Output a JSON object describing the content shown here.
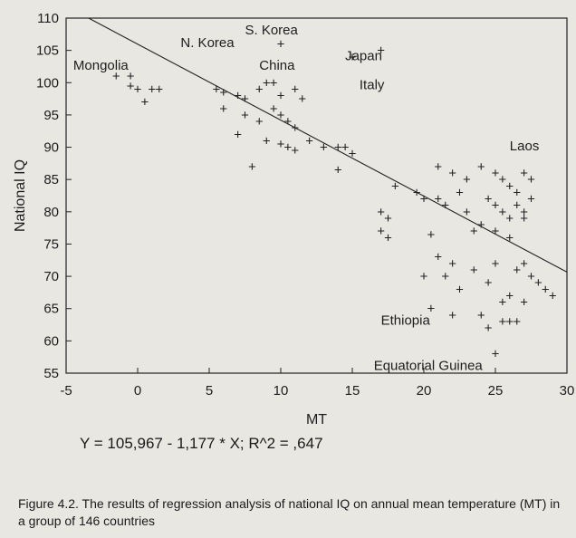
{
  "chart_data": {
    "type": "scatter",
    "xlabel": "MT",
    "ylabel": "National IQ",
    "xlim": [
      -5,
      30
    ],
    "ylim": [
      55,
      110
    ],
    "xticks": [
      -5,
      0,
      5,
      10,
      15,
      20,
      25,
      30
    ],
    "yticks": [
      55,
      60,
      65,
      70,
      75,
      80,
      85,
      90,
      95,
      100,
      105,
      110
    ],
    "grid": false,
    "point_marker": "+",
    "points": [
      [
        -1.5,
        101
      ],
      [
        10,
        106
      ],
      [
        17,
        105
      ],
      [
        15,
        104
      ],
      [
        -0.5,
        101
      ],
      [
        -0.5,
        99.5
      ],
      [
        0,
        99
      ],
      [
        1,
        99
      ],
      [
        1.5,
        99
      ],
      [
        0.5,
        97
      ],
      [
        5.5,
        99
      ],
      [
        6,
        98.5
      ],
      [
        7,
        98
      ],
      [
        7.5,
        97.5
      ],
      [
        8.5,
        99
      ],
      [
        9,
        100
      ],
      [
        9.5,
        100
      ],
      [
        10,
        98
      ],
      [
        11,
        99
      ],
      [
        11.5,
        97.5
      ],
      [
        9.5,
        96
      ],
      [
        10,
        95
      ],
      [
        6,
        96
      ],
      [
        7.5,
        95
      ],
      [
        8.5,
        94
      ],
      [
        10.5,
        94
      ],
      [
        11,
        93
      ],
      [
        7,
        92
      ],
      [
        9,
        91
      ],
      [
        10,
        90.5
      ],
      [
        10.5,
        90
      ],
      [
        11,
        89.5
      ],
      [
        12,
        91
      ],
      [
        13,
        90
      ],
      [
        14,
        90
      ],
      [
        14.5,
        90
      ],
      [
        15,
        89
      ],
      [
        8,
        87
      ],
      [
        14,
        86.5
      ],
      [
        18,
        84
      ],
      [
        19.5,
        83
      ],
      [
        20,
        82
      ],
      [
        21,
        82
      ],
      [
        21.5,
        81
      ],
      [
        17,
        80
      ],
      [
        17.5,
        79
      ],
      [
        21,
        87
      ],
      [
        22,
        86
      ],
      [
        23,
        85
      ],
      [
        22.5,
        83
      ],
      [
        24,
        87
      ],
      [
        25,
        86
      ],
      [
        25.5,
        85
      ],
      [
        26,
        84
      ],
      [
        26.5,
        83
      ],
      [
        27,
        86
      ],
      [
        27.5,
        85
      ],
      [
        24.5,
        82
      ],
      [
        25,
        81
      ],
      [
        25.5,
        80
      ],
      [
        26,
        79
      ],
      [
        26.5,
        81
      ],
      [
        27,
        80
      ],
      [
        27.5,
        82
      ],
      [
        24,
        78
      ],
      [
        25,
        77
      ],
      [
        26,
        76
      ],
      [
        27,
        79
      ],
      [
        23,
        80
      ],
      [
        23.5,
        77
      ],
      [
        17,
        77
      ],
      [
        17.5,
        76
      ],
      [
        20.5,
        76.5
      ],
      [
        21,
        73
      ],
      [
        22,
        72
      ],
      [
        21.5,
        70
      ],
      [
        20,
        70
      ],
      [
        22.5,
        68
      ],
      [
        23.5,
        71
      ],
      [
        24.5,
        69
      ],
      [
        25,
        72
      ],
      [
        26.5,
        71
      ],
      [
        27,
        72
      ],
      [
        27.5,
        70
      ],
      [
        28,
        69
      ],
      [
        28.5,
        68
      ],
      [
        29,
        67
      ],
      [
        26,
        67
      ],
      [
        27,
        66
      ],
      [
        25.5,
        66
      ],
      [
        24,
        64
      ],
      [
        24.5,
        62
      ],
      [
        25.5,
        63
      ],
      [
        26,
        63
      ],
      [
        26.5,
        63
      ],
      [
        22,
        64
      ],
      [
        20.5,
        65
      ],
      [
        25,
        58
      ]
    ],
    "regression": {
      "intercept": 105.967,
      "slope": -1.177
    },
    "annotations": [
      {
        "text": "Mongolia",
        "x": -4.5,
        "y": 102
      },
      {
        "text": "N. Korea",
        "x": 3,
        "y": 105.5
      },
      {
        "text": "S. Korea",
        "x": 7.5,
        "y": 107.5
      },
      {
        "text": "China",
        "x": 8.5,
        "y": 102
      },
      {
        "text": "Japan",
        "x": 14.5,
        "y": 103.5
      },
      {
        "text": "Italy",
        "x": 15.5,
        "y": 99
      },
      {
        "text": "Laos",
        "x": 26,
        "y": 89.5
      },
      {
        "text": "Ethiopia",
        "x": 17,
        "y": 62.5
      },
      {
        "text": "Equatorial Guinea",
        "x": 16.5,
        "y": 55.5
      }
    ]
  },
  "equation": "Y = 105,967 - 1,177 * X; R^2 = ,647",
  "caption": "Figure 4.2.  The results of regression analysis of national IQ on annual mean temperature (MT) in a group of 146 countries"
}
